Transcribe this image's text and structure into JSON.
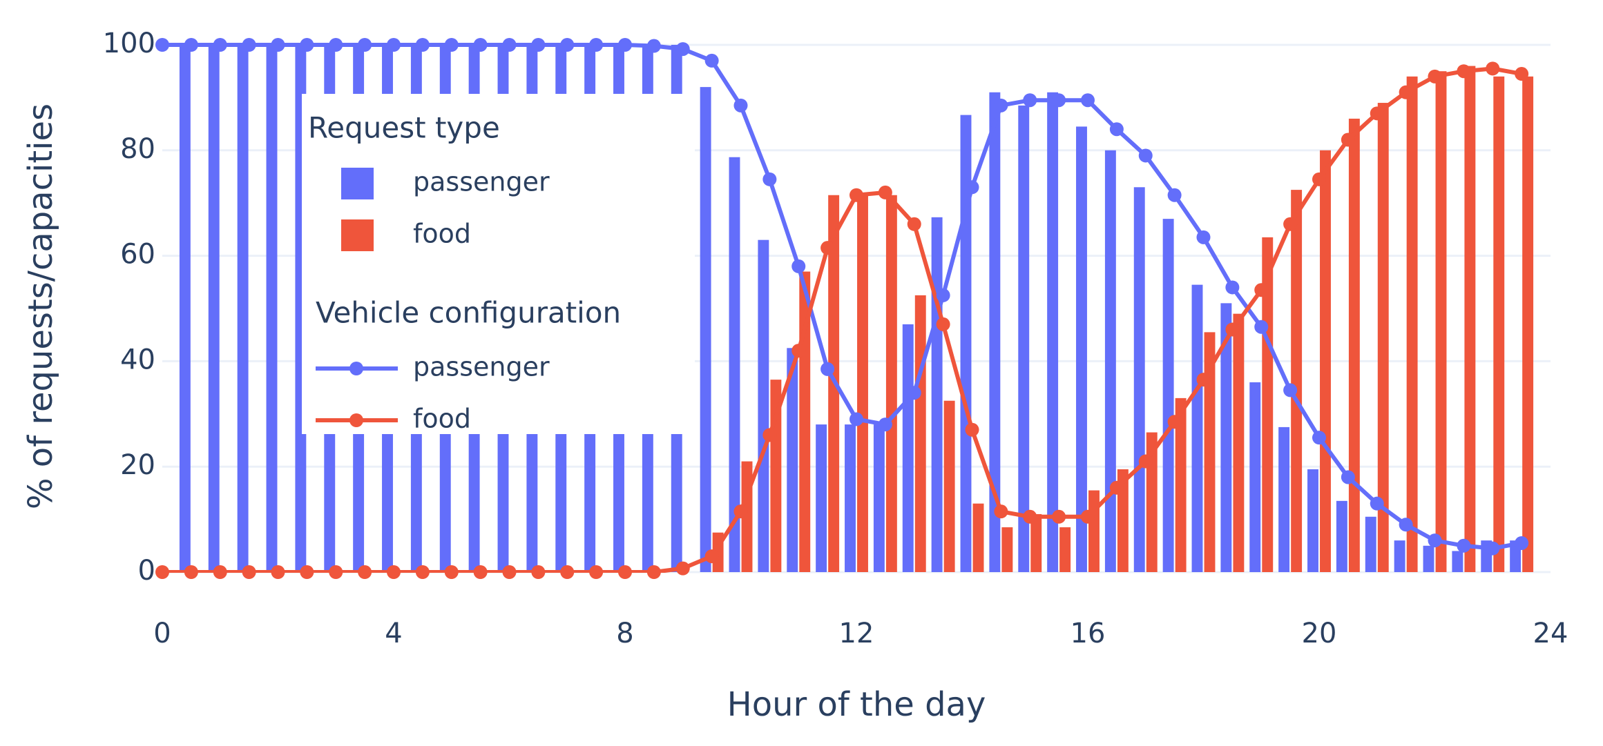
{
  "chart_data": {
    "type": "combo",
    "x_label": "Hour of the day",
    "y_label": "% of requests/capacities",
    "x": [
      0,
      0.5,
      1,
      1.5,
      2,
      2.5,
      3,
      3.5,
      4,
      4.5,
      5,
      5.5,
      6,
      6.5,
      7,
      7.5,
      8,
      8.5,
      9,
      9.5,
      10,
      10.5,
      11,
      11.5,
      12,
      12.5,
      13,
      13.5,
      14,
      14.5,
      15,
      15.5,
      16,
      16.5,
      17,
      17.5,
      18,
      18.5,
      19,
      19.5,
      20,
      20.5,
      21,
      21.5,
      22,
      22.5,
      23,
      23.5
    ],
    "xlim": [
      0,
      24
    ],
    "xticks": [
      0,
      4,
      8,
      12,
      16,
      20,
      24
    ],
    "ylim": [
      0,
      100
    ],
    "yticks": [
      0,
      20,
      40,
      60,
      80,
      100
    ],
    "grid": true,
    "series": [
      {
        "name": "passenger",
        "group": "Request type",
        "kind": "bar",
        "color": "#636efa",
        "values": [
          100,
          100,
          100,
          100,
          100,
          100,
          100,
          100,
          100,
          100,
          100,
          100,
          100,
          100,
          100,
          100,
          100,
          100,
          100,
          92,
          78.7,
          63,
          42.5,
          28,
          28,
          28,
          47,
          67.3,
          86.7,
          91,
          88.5,
          91,
          84.5,
          80,
          73,
          67,
          54.5,
          51,
          36,
          27.5,
          19.5,
          13.5,
          10.5,
          6,
          5,
          4,
          6,
          6
        ]
      },
      {
        "name": "food",
        "group": "Request type",
        "kind": "bar",
        "color": "#ef553b",
        "values": [
          0,
          0,
          0,
          0,
          0,
          0,
          0,
          0,
          0,
          0,
          0,
          0,
          0,
          0,
          0,
          0,
          0,
          0,
          0,
          7.5,
          21,
          36.5,
          57,
          71.5,
          71.5,
          71.5,
          52.5,
          32.5,
          13,
          8.5,
          11,
          8.5,
          15.5,
          19.5,
          26.5,
          33,
          45.5,
          49,
          63.5,
          72.5,
          80,
          86,
          89,
          94,
          95,
          96,
          94,
          94
        ]
      },
      {
        "name": "passenger",
        "group": "Vehicle configuration",
        "kind": "line",
        "color": "#636efa",
        "values": [
          100,
          100,
          100,
          100,
          100,
          100,
          100,
          100,
          100,
          100,
          100,
          100,
          100,
          100,
          100,
          100,
          100,
          99.8,
          99.2,
          97,
          88.5,
          74.5,
          58,
          38.5,
          29,
          28,
          34,
          52.5,
          73,
          88.5,
          89.5,
          89.5,
          89.5,
          84,
          79,
          71.5,
          63.5,
          54,
          46.5,
          34.5,
          25.5,
          18,
          13,
          9,
          6,
          5,
          4.5,
          5.5
        ]
      },
      {
        "name": "food",
        "group": "Vehicle configuration",
        "kind": "line",
        "color": "#ef553b",
        "values": [
          0,
          0,
          0,
          0,
          0,
          0,
          0,
          0,
          0,
          0,
          0,
          0,
          0,
          0,
          0,
          0,
          0,
          0,
          0.7,
          3,
          11.5,
          26,
          42,
          61.5,
          71.5,
          72,
          66,
          47,
          27,
          11.5,
          10.5,
          10.5,
          10.5,
          16,
          21,
          28.5,
          36.5,
          46,
          53.5,
          66,
          74.5,
          82,
          87,
          91,
          94,
          95,
          95.5,
          94.5
        ]
      }
    ]
  }
}
